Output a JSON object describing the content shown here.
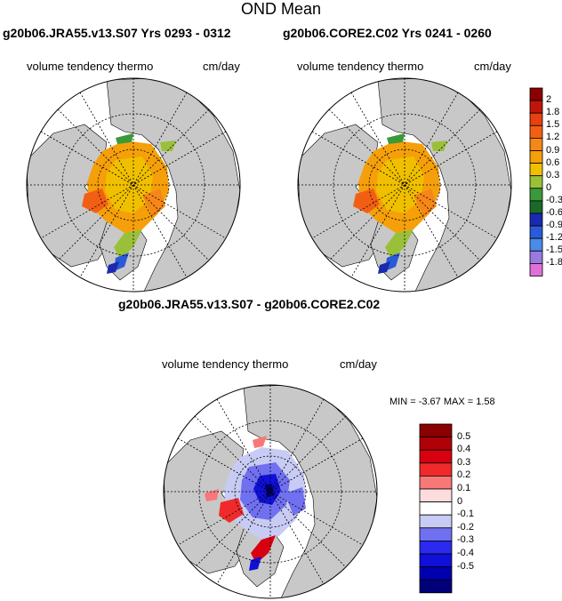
{
  "page": {
    "title": "OND Mean"
  },
  "panels": {
    "left": {
      "title": "g20b06.JRA55.v13.S07  Yrs 0293 - 0312",
      "variable": "volume tendency thermo",
      "units": "cm/day"
    },
    "right": {
      "title": "g20b06.CORE2.C02  Yrs 0241 - 0260",
      "variable": "volume tendency thermo",
      "units": "cm/day"
    },
    "diff": {
      "title": "g20b06.JRA55.v13.S07 - g20b06.CORE2.C02",
      "variable": "volume tendency thermo",
      "units": "cm/day",
      "stats": "MIN =  -3.67 MAX =   1.58"
    }
  },
  "colorbar_main": {
    "labels": [
      "2",
      "1.8",
      "1.5",
      "1.2",
      "0.9",
      "0.6",
      "0.3",
      "0",
      "-0.3",
      "-0.6",
      "-0.9",
      "-1.2",
      "-1.5",
      "-1.8"
    ],
    "colors": [
      "#8b0000",
      "#c0150a",
      "#e8400f",
      "#f25f14",
      "#f58618",
      "#f5a00a",
      "#f0c000",
      "#9ac03a",
      "#3a9a3a",
      "#1a6a2a",
      "#1a2ab0",
      "#2a5ad8",
      "#4a8ae8",
      "#9a7ae0",
      "#e070d8"
    ]
  },
  "colorbar_diff": {
    "labels": [
      "0.5",
      "0.4",
      "0.3",
      "0.2",
      "0.1",
      "0",
      "-0.1",
      "-0.2",
      "-0.3",
      "-0.4",
      "-0.5"
    ],
    "colors": [
      "#8b0000",
      "#b00008",
      "#d80010",
      "#f02a2a",
      "#f87878",
      "#fcdcdc",
      "#ffffff",
      "#c8ccf4",
      "#7070f0",
      "#2a2af0",
      "#1010d8",
      "#0000b0",
      "#00007a"
    ]
  }
}
